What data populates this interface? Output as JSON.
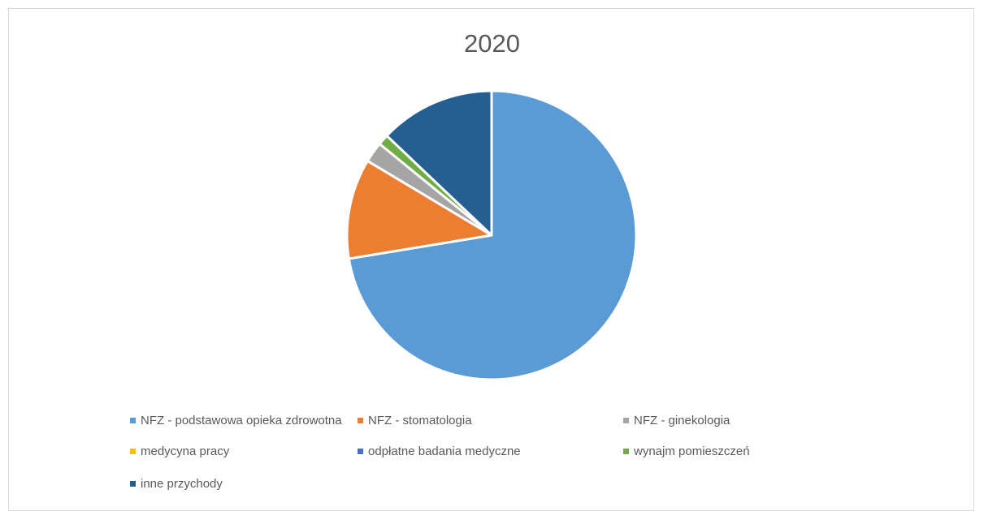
{
  "chart_data": {
    "type": "pie",
    "title": "2020",
    "start_angle_deg": 0,
    "direction": "clockwise",
    "slices": [
      {
        "label": "NFZ - podstawowa opieka zdrowotna",
        "value": 72.4,
        "color": "#5b9bd5"
      },
      {
        "label": "NFZ - stomatologia",
        "value": 11.2,
        "color": "#ed7d31"
      },
      {
        "label": "NFZ - ginekologia",
        "value": 2.3,
        "color": "#a5a5a5"
      },
      {
        "label": "medycyna pracy",
        "value": 0.0,
        "color": "#ffc000"
      },
      {
        "label": "odpłatne badania medyczne",
        "value": 0.0,
        "color": "#4472c4"
      },
      {
        "label": "wynajm pomieszczeń",
        "value": 1.2,
        "color": "#70ad47"
      },
      {
        "label": "inne przychody",
        "value": 12.9,
        "color": "#255e91"
      }
    ],
    "legend_position": "bottom"
  }
}
